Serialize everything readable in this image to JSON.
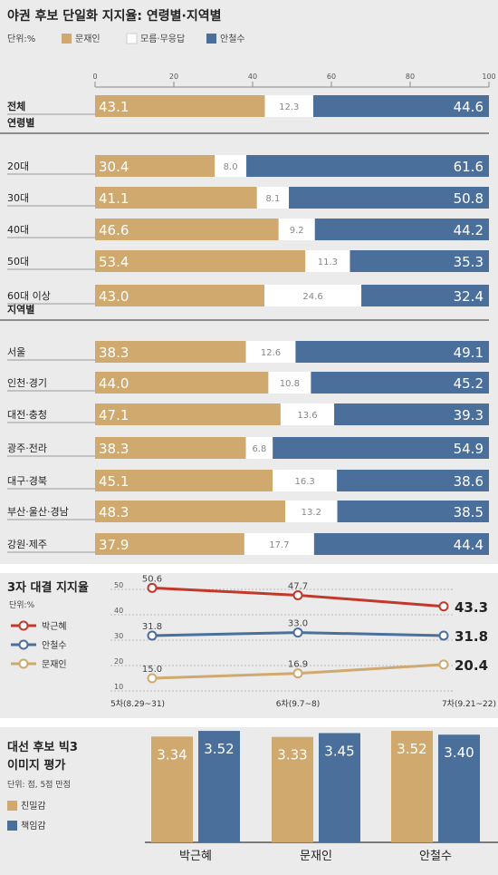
{
  "colors": {
    "moon": "#cfa96e",
    "none": "#ffffff",
    "ahn": "#4a6f9a",
    "park": "#c2392b",
    "bg": "#ebebeb",
    "text": "#222222"
  },
  "chart_data": [
    {
      "type": "bar",
      "stacked": true,
      "orientation": "horizontal",
      "title": "야권 후보 단일화 지지율: 연령별·지역별",
      "unit": "단위:%",
      "legend": [
        "문재인",
        "모름·무응답",
        "안철수"
      ],
      "xlim": [
        0,
        100
      ],
      "xticks": [
        0,
        20,
        40,
        60,
        80,
        100
      ],
      "groups": [
        {
          "header": "",
          "rows": [
            {
              "label": "전체",
              "bold": true,
              "values": [
                43.1,
                12.3,
                44.6
              ]
            }
          ]
        },
        {
          "header": "연령별",
          "rows": [
            {
              "label": "20대",
              "values": [
                30.4,
                8.0,
                61.6
              ]
            },
            {
              "label": "30대",
              "values": [
                41.1,
                8.1,
                50.8
              ]
            },
            {
              "label": "40대",
              "values": [
                46.6,
                9.2,
                44.2
              ]
            },
            {
              "label": "50대",
              "values": [
                53.4,
                11.3,
                35.3
              ]
            },
            {
              "label": "60대 이상",
              "values": [
                43.0,
                24.6,
                32.4
              ]
            }
          ]
        },
        {
          "header": "지역별",
          "rows": [
            {
              "label": "서울",
              "values": [
                38.3,
                12.6,
                49.1
              ]
            },
            {
              "label": "인천·경기",
              "values": [
                44.0,
                10.8,
                45.2
              ]
            },
            {
              "label": "대전·충청",
              "values": [
                47.1,
                13.6,
                39.3
              ]
            },
            {
              "label": "광주·전라",
              "values": [
                38.3,
                6.8,
                54.9
              ]
            },
            {
              "label": "대구·경북",
              "values": [
                45.1,
                16.3,
                38.6
              ]
            },
            {
              "label": "부산·울산·경남",
              "values": [
                48.3,
                13.2,
                38.5
              ]
            },
            {
              "label": "강원·제주",
              "values": [
                37.9,
                17.7,
                44.4
              ]
            }
          ]
        }
      ]
    },
    {
      "type": "line",
      "title": "3자 대결 지지율",
      "unit": "단위:%",
      "categories": [
        "5차(8.29~31)",
        "6차(9.7~8)",
        "7차(9.21~22)"
      ],
      "ylim": [
        10,
        50
      ],
      "yticks": [
        10,
        20,
        30,
        40,
        50
      ],
      "series": [
        {
          "name": "박근혜",
          "values": [
            50.6,
            47.7,
            43.3
          ]
        },
        {
          "name": "안철수",
          "values": [
            31.8,
            33.0,
            31.8
          ]
        },
        {
          "name": "문재인",
          "values": [
            15.0,
            16.9,
            20.4
          ]
        }
      ]
    },
    {
      "type": "bar",
      "title": "대선 후보 빅3 이미지 평가",
      "title_lines": [
        "대선 후보 빅3",
        "이미지 평가"
      ],
      "unit": "단위: 점, 5점 만점",
      "categories": [
        "박근혜",
        "문재인",
        "안철수"
      ],
      "ylim": [
        0,
        5
      ],
      "series": [
        {
          "name": "친밀감",
          "values": [
            3.34,
            3.33,
            3.52
          ]
        },
        {
          "name": "책임감",
          "values": [
            3.52,
            3.45,
            3.4
          ]
        }
      ]
    }
  ]
}
